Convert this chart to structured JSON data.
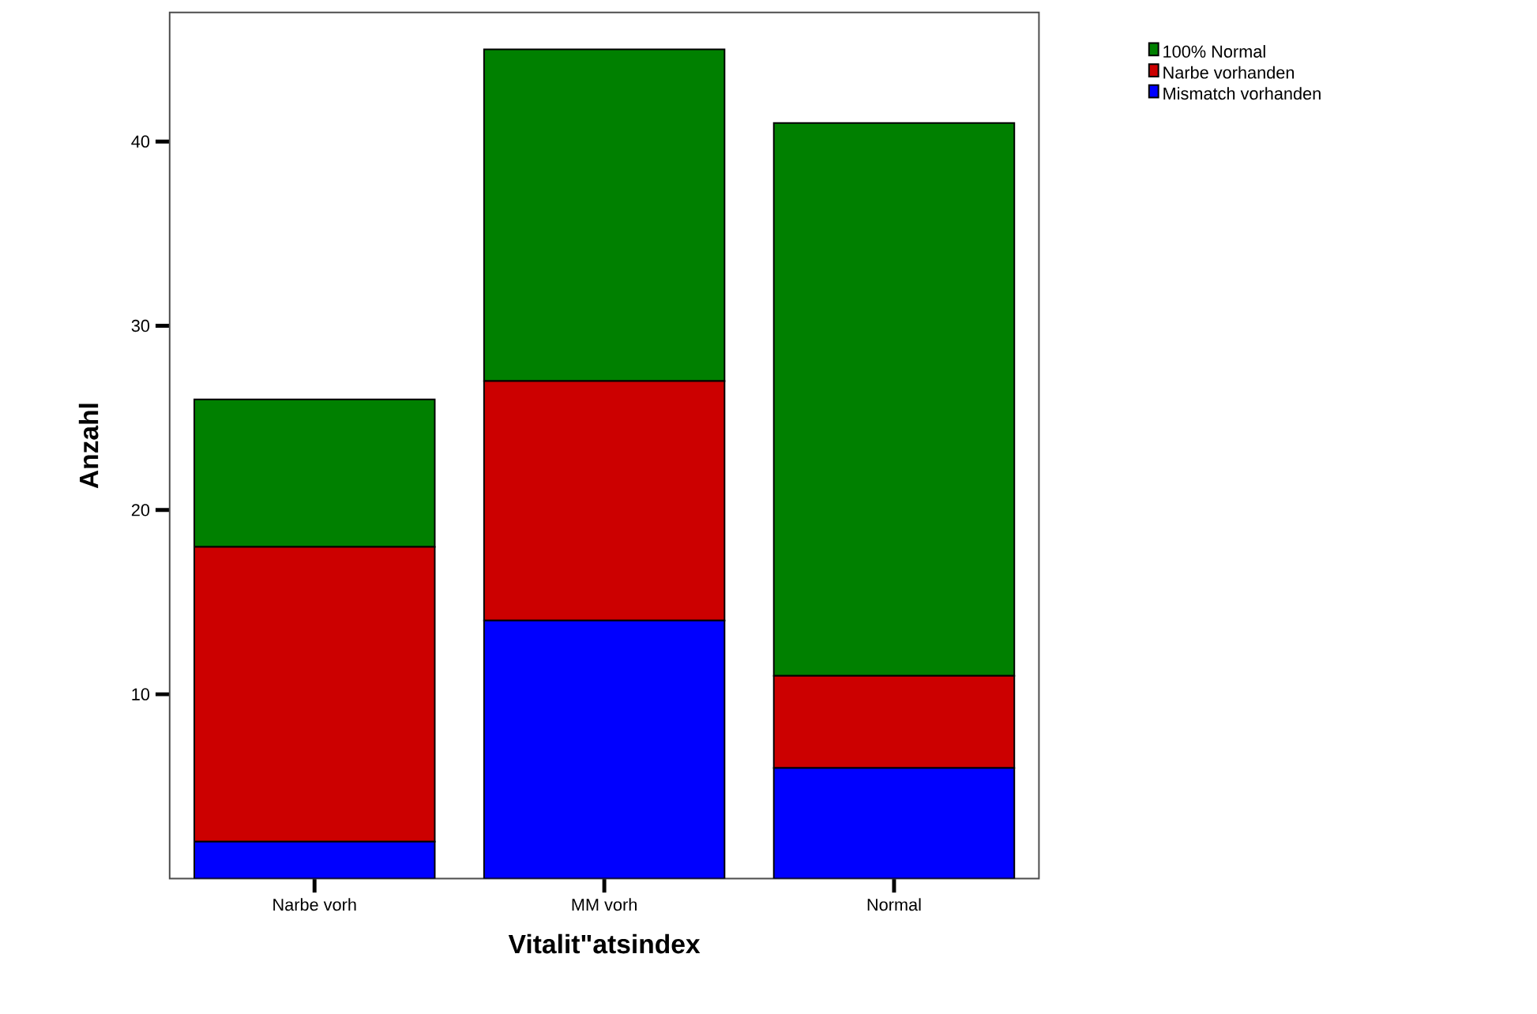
{
  "chart_data": {
    "type": "bar",
    "stacked": true,
    "xlabel": "Vitalit\"atsindex",
    "ylabel": "Anzahl",
    "categories": [
      "Narbe vorh",
      "MM vorh",
      "Normal"
    ],
    "series": [
      {
        "name": "Mismatch vorhanden",
        "color": "#0000ff",
        "values": [
          2,
          14,
          6
        ]
      },
      {
        "name": "Narbe vorhanden",
        "color": "#cc0000",
        "values": [
          16,
          13,
          5
        ]
      },
      {
        "name": "100% Normal",
        "color": "#008000",
        "values": [
          8,
          18,
          30
        ]
      }
    ],
    "ylim": [
      0,
      47
    ],
    "yticks": [
      10,
      20,
      30,
      40
    ],
    "legend": "top right"
  }
}
